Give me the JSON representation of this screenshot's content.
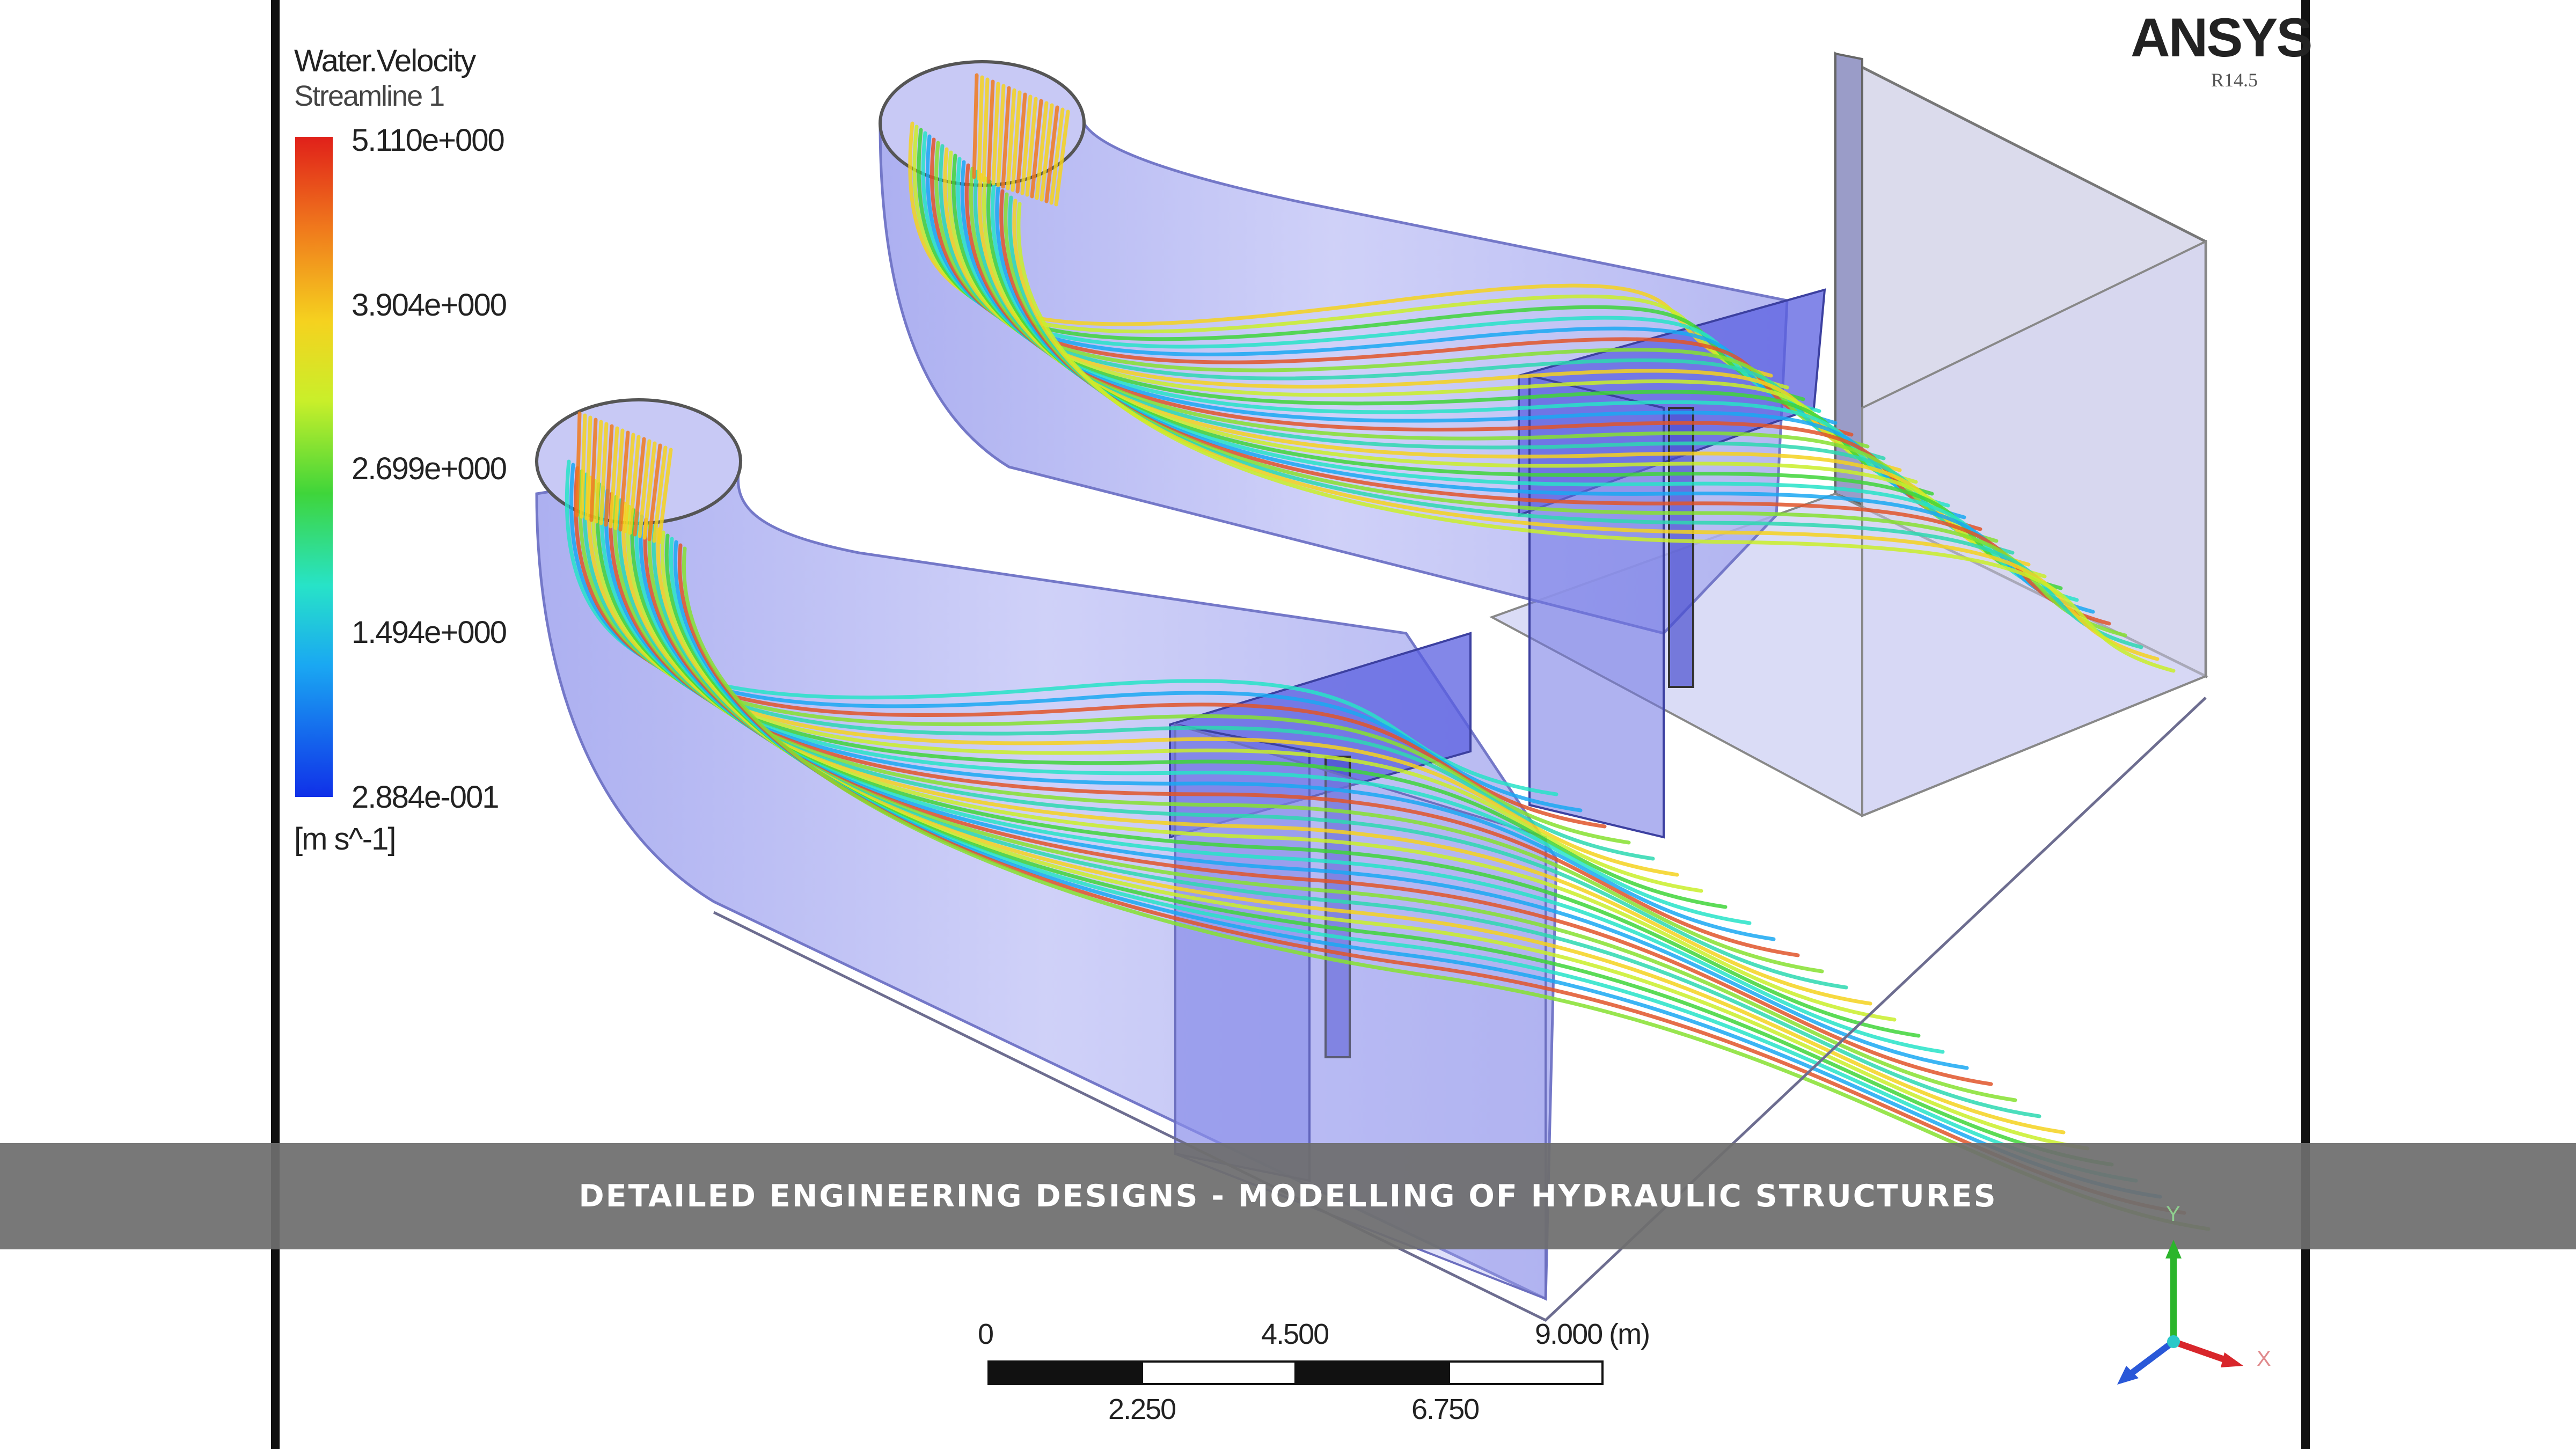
{
  "legend": {
    "variable": "Water.Velocity",
    "object": "Streamline 1",
    "values": [
      "5.110e+000",
      "3.904e+000",
      "2.699e+000",
      "1.494e+000",
      "2.884e-001"
    ],
    "unit": "[m s^-1]",
    "colors": [
      "#e0201a",
      "#f5d21f",
      "#3fd53a",
      "#27e3c8",
      "#1030e8"
    ]
  },
  "branding": {
    "logo": "ANSYS",
    "version": "R14.5"
  },
  "scale_bar": {
    "top_labels": [
      "0",
      "4.500",
      "9.000  (m)"
    ],
    "bottom_labels": [
      "2.250",
      "6.750"
    ]
  },
  "axes": {
    "y": "Y",
    "x": "X",
    "y_color": "#2bb52b",
    "x_color": "#d8262b",
    "z_color": "#2a58d8"
  },
  "banner": {
    "caption": "DETAILED ENGINEERING DESIGNS - MODELLING OF HYDRAULIC STRUCTURES"
  },
  "colors": {
    "structure_fill": "#b6b8f4",
    "pier_fill": "#5a5fe0",
    "banner_bg": "#6e6e6e"
  }
}
